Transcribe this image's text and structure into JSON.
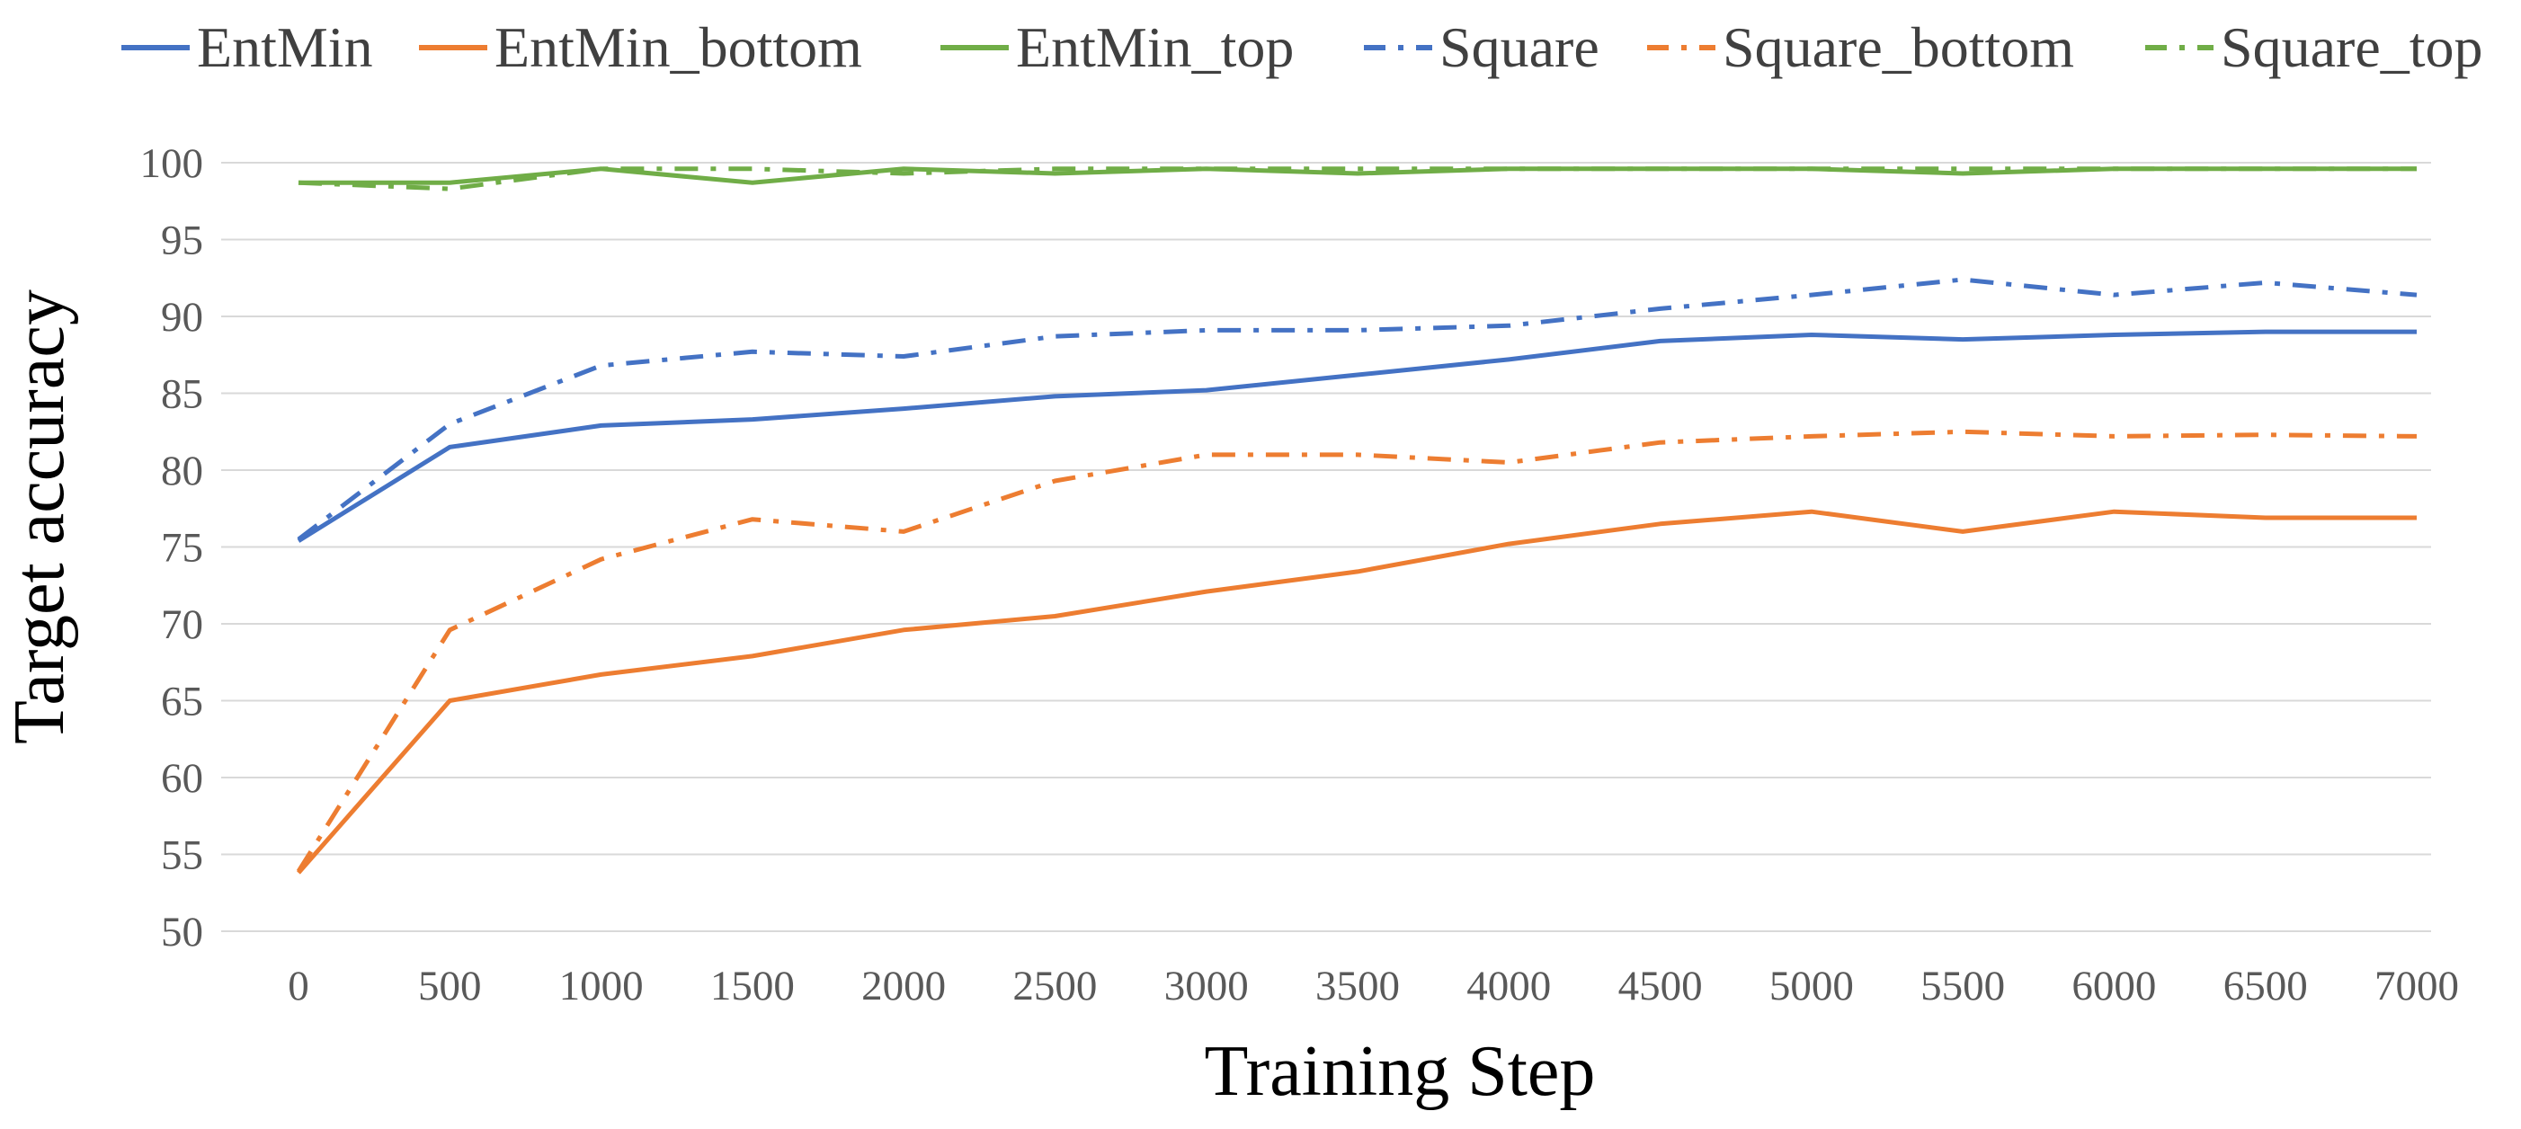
{
  "chart_data": {
    "type": "line",
    "xlabel": "Training Step",
    "ylabel": "Target accuracy",
    "categories": [
      "0",
      "500",
      "1000",
      "1500",
      "2000",
      "2500",
      "3000",
      "3500",
      "4000",
      "4500",
      "5000",
      "5500",
      "6000",
      "6500",
      "7000"
    ],
    "ylim": [
      50,
      100
    ],
    "yticks": [
      50,
      55,
      60,
      65,
      70,
      75,
      80,
      85,
      90,
      95,
      100
    ],
    "grid": true,
    "legend_position": "top",
    "series": [
      {
        "name": "EntMin",
        "color": "#4472c4",
        "dash": "solid",
        "values": [
          75.4,
          81.5,
          82.9,
          83.3,
          84.0,
          84.8,
          85.2,
          86.2,
          87.2,
          88.4,
          88.8,
          88.5,
          88.8,
          89.0,
          89.0
        ]
      },
      {
        "name": "EntMin_bottom",
        "color": "#ed7d31",
        "dash": "solid",
        "values": [
          53.8,
          65.0,
          66.7,
          67.9,
          69.6,
          70.5,
          72.1,
          73.4,
          75.2,
          76.5,
          77.3,
          76.0,
          77.3,
          76.9,
          76.9
        ]
      },
      {
        "name": "EntMin_top",
        "color": "#70ad47",
        "dash": "solid",
        "values": [
          98.7,
          98.7,
          99.6,
          98.7,
          99.6,
          99.3,
          99.6,
          99.3,
          99.6,
          99.6,
          99.6,
          99.3,
          99.6,
          99.6,
          99.6
        ]
      },
      {
        "name": "Square",
        "color": "#4472c4",
        "dash": "dashdot",
        "values": [
          75.5,
          83.0,
          86.8,
          87.7,
          87.4,
          88.7,
          89.1,
          89.1,
          89.4,
          90.5,
          91.4,
          92.4,
          91.4,
          92.2,
          91.4
        ]
      },
      {
        "name": "Square_bottom",
        "color": "#ed7d31",
        "dash": "dashdot",
        "values": [
          53.9,
          69.6,
          74.2,
          76.8,
          76.0,
          79.3,
          81.0,
          81.0,
          80.5,
          81.8,
          82.2,
          82.5,
          82.2,
          82.3,
          82.2
        ]
      },
      {
        "name": "Square_top",
        "color": "#70ad47",
        "dash": "dashdot",
        "values": [
          98.7,
          98.3,
          99.6,
          99.6,
          99.3,
          99.6,
          99.6,
          99.6,
          99.6,
          99.6,
          99.6,
          99.6,
          99.6,
          99.6,
          99.6
        ]
      }
    ]
  }
}
